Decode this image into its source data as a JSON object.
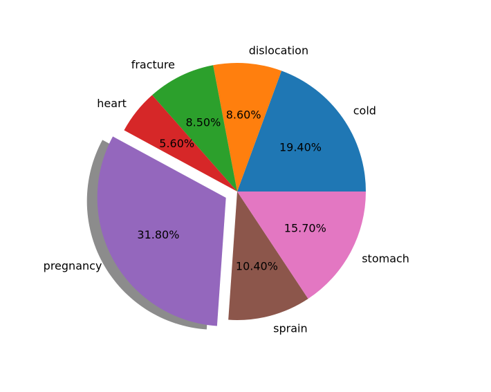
{
  "chart_data": {
    "type": "pie",
    "title": "",
    "labels": [
      "cold",
      "dislocation",
      "fracture",
      "heart",
      "pregnancy",
      "sprain",
      "stomach"
    ],
    "values": [
      19.4,
      8.6,
      8.5,
      5.6,
      31.8,
      10.4,
      15.7
    ],
    "value_labels": [
      "19.40%",
      "8.60%",
      "8.50%",
      "5.60%",
      "31.80%",
      "10.40%",
      "15.70%"
    ],
    "colors": [
      "#1f77b4",
      "#ff7f0e",
      "#2ca02c",
      "#d62728",
      "#9467bd",
      "#8c564b",
      "#e377c2"
    ],
    "start_angle_deg": 0,
    "direction": "counterclockwise",
    "exploded": [
      "pregnancy"
    ],
    "shadow": true,
    "legend": "none"
  }
}
